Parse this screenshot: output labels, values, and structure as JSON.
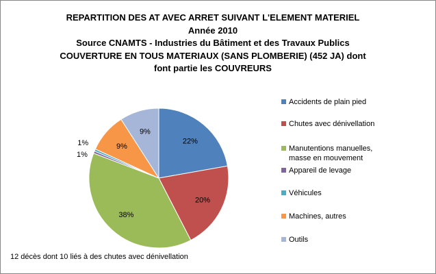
{
  "chart_data": {
    "type": "pie",
    "title_lines": [
      "REPARTITION DES AT AVEC ARRET SUIVANT L'ELEMENT MATERIEL",
      "Année 2010",
      "Source CNAMTS - Industries du Bâtiment et des Travaux Publics",
      "COUVERTURE EN TOUS MATERIAUX (SANS PLOMBERIE) (452 JA) dont",
      "font partie les COUVREURS"
    ],
    "slices": [
      {
        "label": "Accidents de plain pied",
        "value": 22,
        "value_label": "22%",
        "color": "#4F81BD"
      },
      {
        "label": "Chutes avec dénivellation",
        "value": 20,
        "value_label": "20%",
        "color": "#C0504D"
      },
      {
        "label": "Manutentions manuelles, masse en mouvement",
        "value": 38,
        "value_label": "38%",
        "color": "#9BBB59"
      },
      {
        "label": "Appareil de levage",
        "value": 0.5,
        "value_label": "1%",
        "color": "#8064A2"
      },
      {
        "label": "Véhicules",
        "value": 0.5,
        "value_label": "1%",
        "color": "#4BACC6"
      },
      {
        "label": "Machines, autres",
        "value": 9,
        "value_label": "9%",
        "color": "#F79646"
      },
      {
        "label": "Outils",
        "value": 9,
        "value_label": "9%",
        "color": "#A5B6D9"
      }
    ],
    "legend_position": "right",
    "start_angle": "12 o'clock, clockwise"
  },
  "legend_display": [
    "Accidents de plain pied",
    "Chutes avec dénivellation",
    "Manutentions manuelles,\nmasse en mouvement",
    "Appareil de levage",
    "Véhicules",
    "Machines, autres",
    "Outils"
  ],
  "footnote": "12 décès dont 10 liés à des chutes avec dénivellation"
}
